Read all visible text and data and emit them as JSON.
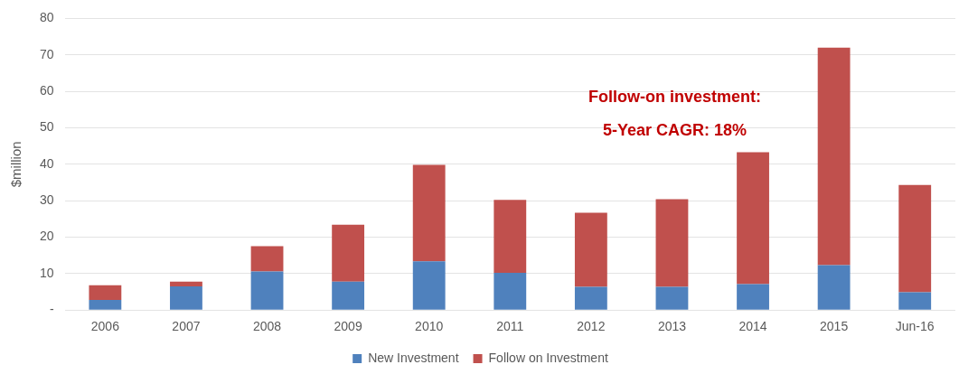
{
  "chart_data": {
    "type": "bar",
    "stacked": true,
    "ylabel": "$million",
    "categories": [
      "2006",
      "2007",
      "2008",
      "2009",
      "2010",
      "2011",
      "2012",
      "2013",
      "2014",
      "2015",
      "Jun-16"
    ],
    "series": [
      {
        "name": "New Investment",
        "color": "#4f81bd",
        "values": [
          2.8,
          6.5,
          10.6,
          7.8,
          13.4,
          10.2,
          6.4,
          6.4,
          7.1,
          12.3,
          4.9
        ]
      },
      {
        "name": "Follow on Investment",
        "color": "#c0504d",
        "values": [
          4.0,
          1.3,
          6.9,
          15.6,
          26.4,
          20.0,
          20.3,
          24.0,
          36.2,
          59.7,
          29.4
        ]
      }
    ],
    "ylim": [
      0,
      80
    ],
    "yticks": [
      {
        "value": 0,
        "label": "-"
      },
      10,
      20,
      30,
      40,
      50,
      60,
      70,
      80
    ],
    "grid": "y",
    "legend": "bottom",
    "annotations": [
      "Follow-on investment:",
      "5-Year CAGR: 18%"
    ]
  }
}
